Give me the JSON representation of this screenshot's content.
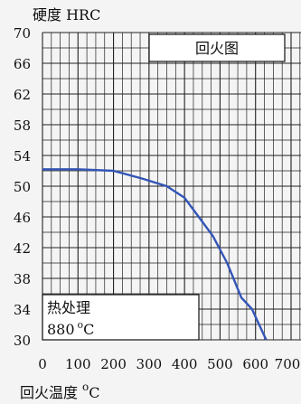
{
  "chart_data": {
    "type": "line",
    "ylabel": "硬度 HRC",
    "xlabel": "回火温度",
    "xlabel_unit": "°C",
    "xlabel_unit_prefix": "o",
    "xlabel_unit_suffix": "C",
    "legend_title": "回火图",
    "treatment_label": "热处理",
    "treatment_temp": "880",
    "treatment_unit_prefix": "o",
    "treatment_unit_suffix": "C",
    "xlim": [
      0,
      700
    ],
    "ylim": [
      30,
      70
    ],
    "xticks": [
      "0",
      "100",
      "200",
      "300",
      "400",
      "500",
      "600",
      "700"
    ],
    "yticks": [
      "70",
      "66",
      "62",
      "58",
      "54",
      "50",
      "46",
      "42",
      "38",
      "34",
      "30"
    ],
    "grid": true,
    "line_color": "#3355b8",
    "series": [
      {
        "x": [
          0,
          100,
          200,
          280,
          350,
          400,
          440,
          480,
          520,
          560,
          590,
          610,
          630
        ],
        "y": [
          52.2,
          52.2,
          52.0,
          51.0,
          50.0,
          48.5,
          46.0,
          43.5,
          40.0,
          35.5,
          34.0,
          32.0,
          30.0
        ]
      }
    ]
  }
}
